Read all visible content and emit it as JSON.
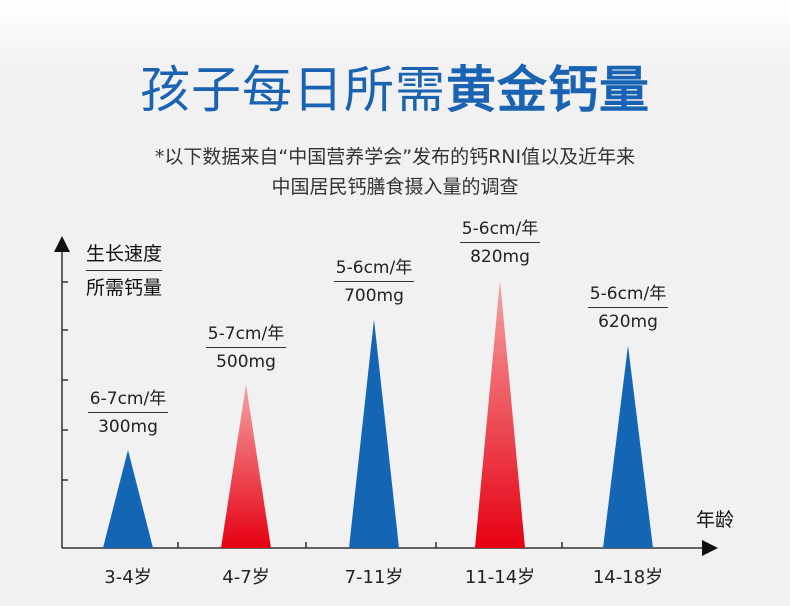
{
  "title": {
    "normal": "孩子每日所需",
    "bold": "黄金钙量"
  },
  "note": {
    "line1": "*以下数据来自“中国营养学会”发布的钙RNI值以及近年来",
    "line2": "中国居民钙膳食摄入量的调查"
  },
  "chart_data": {
    "type": "bar",
    "ylabel_line1": "生长速度",
    "ylabel_line2": "所需钙量",
    "xlabel": "年龄",
    "categories": [
      "3-4岁",
      "4-7岁",
      "7-11岁",
      "11-14岁",
      "14-18岁"
    ],
    "values": [
      300,
      500,
      700,
      820,
      620
    ],
    "unit": "mg",
    "growth_labels": [
      "6-7cm/年",
      "5-7cm/年",
      "5-6cm/年",
      "5-6cm/年",
      "5-6cm/年"
    ],
    "value_labels": [
      "300mg",
      "500mg",
      "700mg",
      "820mg",
      "620mg"
    ],
    "highlight": [
      false,
      true,
      false,
      true,
      false
    ],
    "colors": {
      "blue": "#1565b5",
      "red_top": "#f5a3a3",
      "red_bottom": "#e60012"
    }
  }
}
